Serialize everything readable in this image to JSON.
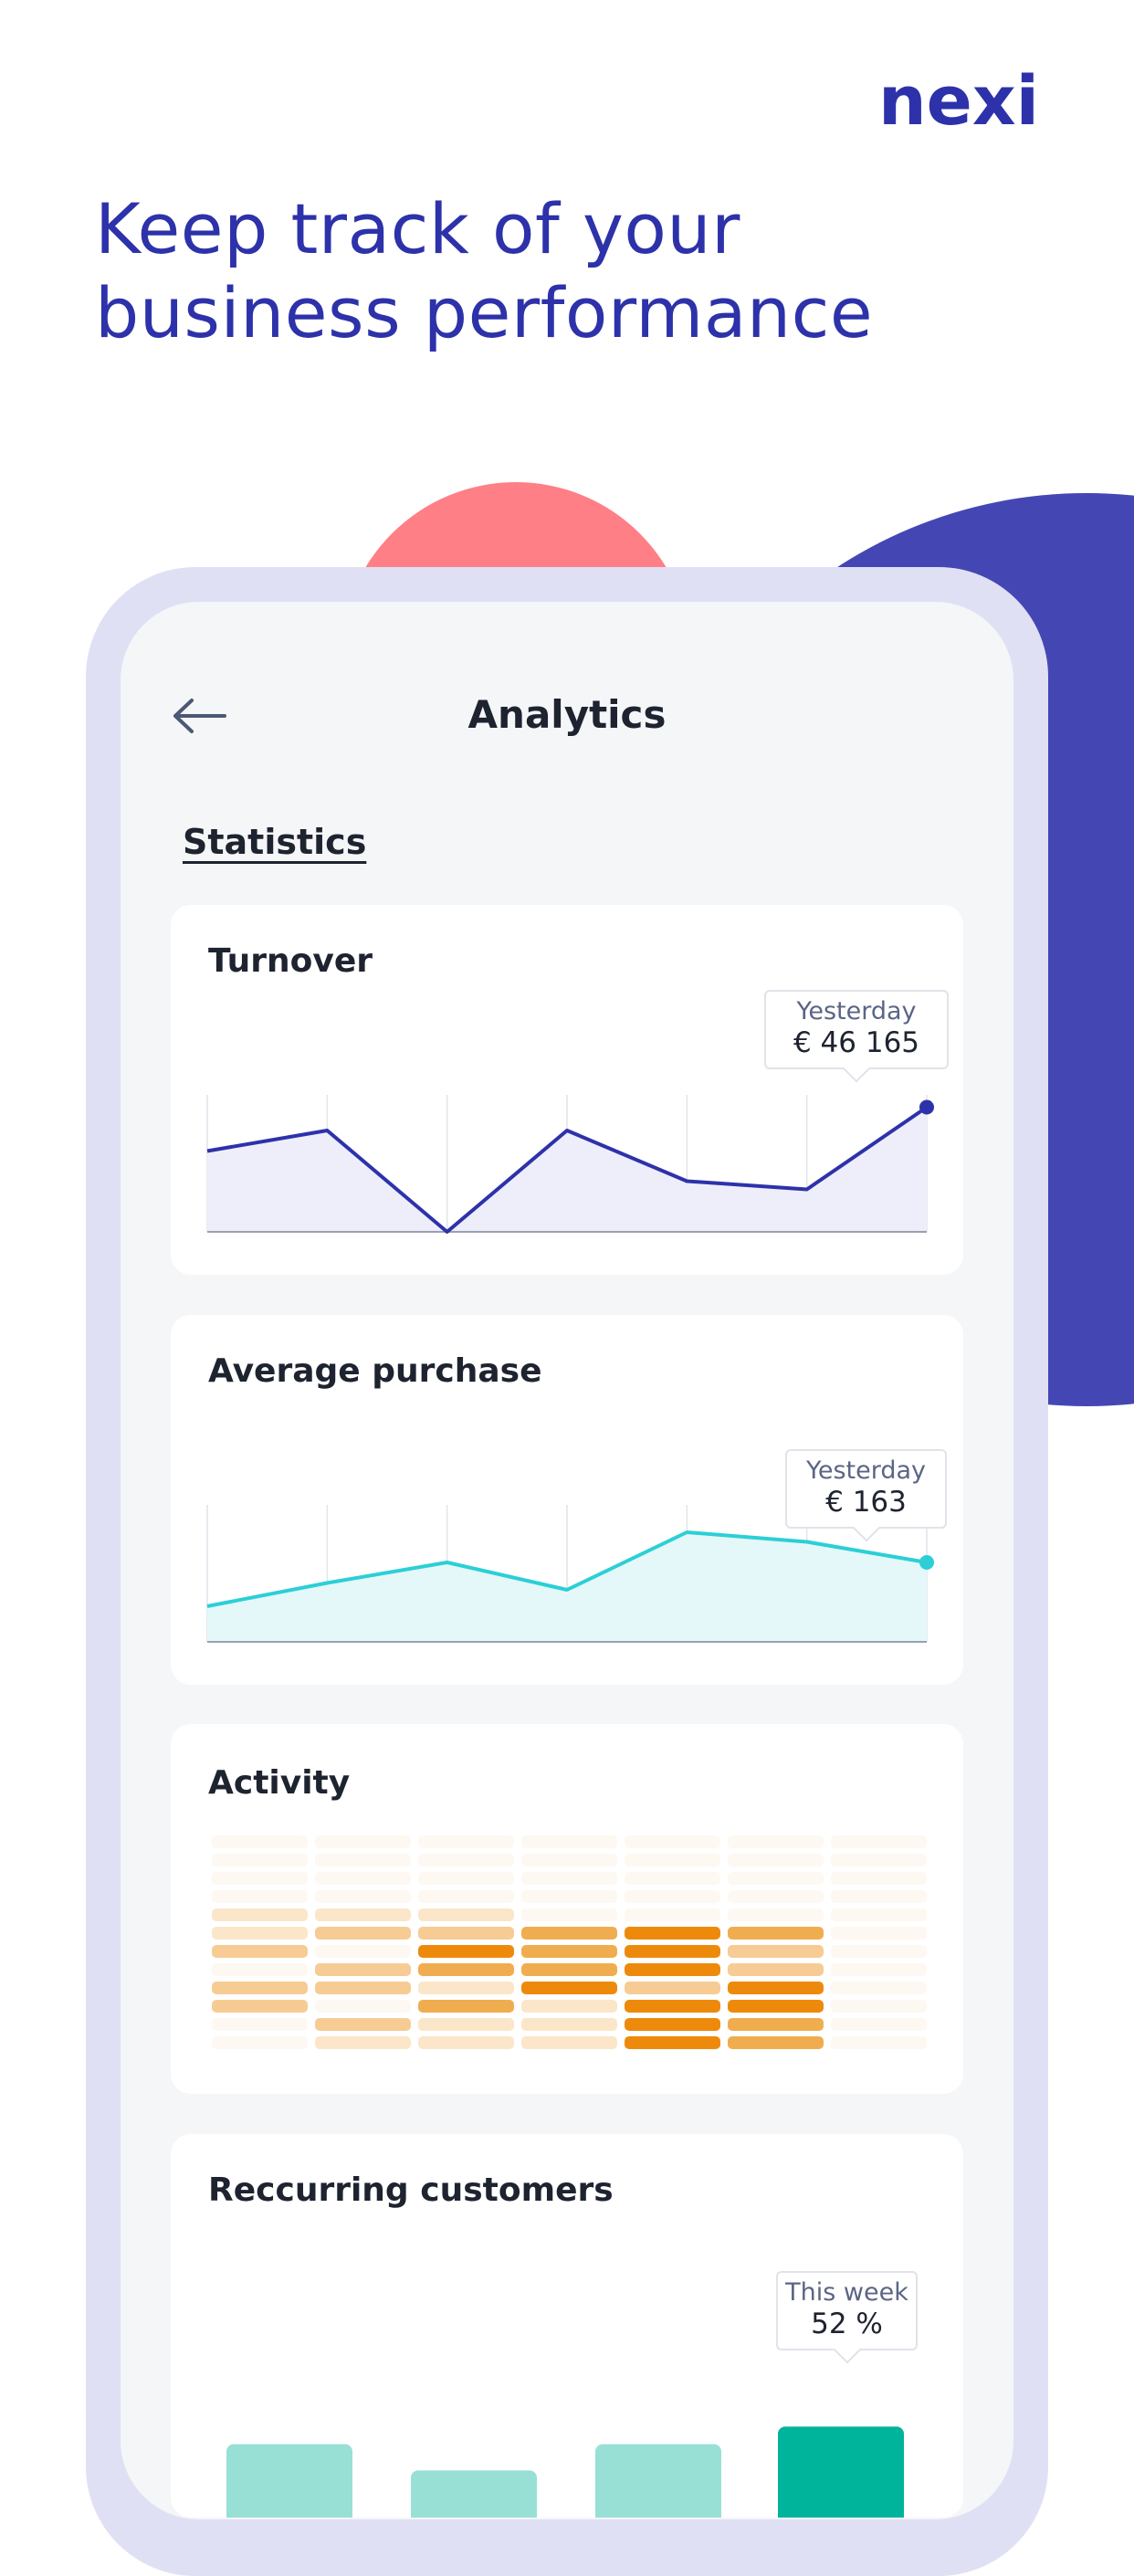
{
  "brand": {
    "logo_text": "nexi",
    "color": "#2d32aa"
  },
  "headline": {
    "line1": "Keep track of your",
    "line2": "business performance"
  },
  "app": {
    "title": "Analytics",
    "back_icon": "arrow-left-icon",
    "section": "Statistics"
  },
  "cards": {
    "turnover": {
      "title": "Turnover",
      "tooltip_label": "Yesterday",
      "tooltip_value": "€ 46 165",
      "color": "#2d32aa"
    },
    "average": {
      "title": "Average purchase",
      "tooltip_label": "Yesterday",
      "tooltip_value": "€ 163",
      "color": "#2ccfd6"
    },
    "activity": {
      "title": "Activity",
      "color": "#ee8a0b"
    },
    "recurring": {
      "title": "Reccurring customers",
      "tooltip_label": "This week",
      "tooltip_value": "52 %",
      "color": "#00b39b"
    }
  },
  "chart_data": [
    {
      "type": "line",
      "name": "turnover",
      "values": [
        59,
        74,
        0,
        74,
        37,
        31,
        91
      ],
      "ylim": [
        0,
        100
      ],
      "grid": true,
      "highlight_index": 6
    },
    {
      "type": "line",
      "name": "average",
      "values": [
        26,
        43,
        58,
        38,
        80,
        73,
        58
      ],
      "ylim": [
        0,
        100
      ],
      "grid": true,
      "highlight_index": 6
    },
    {
      "type": "heatmap",
      "name": "activity",
      "rows": 12,
      "columns": 7,
      "levels": [
        [
          0,
          0,
          0,
          0,
          0,
          0,
          0
        ],
        [
          0,
          0,
          0,
          0,
          0,
          0,
          0
        ],
        [
          0,
          0,
          0,
          0,
          0,
          0,
          0
        ],
        [
          0,
          0,
          0,
          0,
          0,
          0,
          0
        ],
        [
          1,
          1,
          1,
          0,
          0,
          0,
          0
        ],
        [
          1,
          2,
          2,
          3,
          4,
          3,
          0
        ],
        [
          2,
          0,
          4,
          3,
          4,
          2,
          0
        ],
        [
          0,
          2,
          3,
          3,
          4,
          2,
          0
        ],
        [
          2,
          2,
          1,
          4,
          2,
          4,
          0
        ],
        [
          2,
          0,
          3,
          1,
          4,
          4,
          0
        ],
        [
          0,
          2,
          1,
          1,
          4,
          3,
          0
        ],
        [
          0,
          1,
          1,
          1,
          4,
          3,
          0
        ]
      ]
    },
    {
      "type": "bar",
      "name": "recurring",
      "values": [
        48,
        42,
        48,
        52
      ],
      "ylim": [
        0,
        100
      ],
      "highlight_index": 3
    }
  ]
}
